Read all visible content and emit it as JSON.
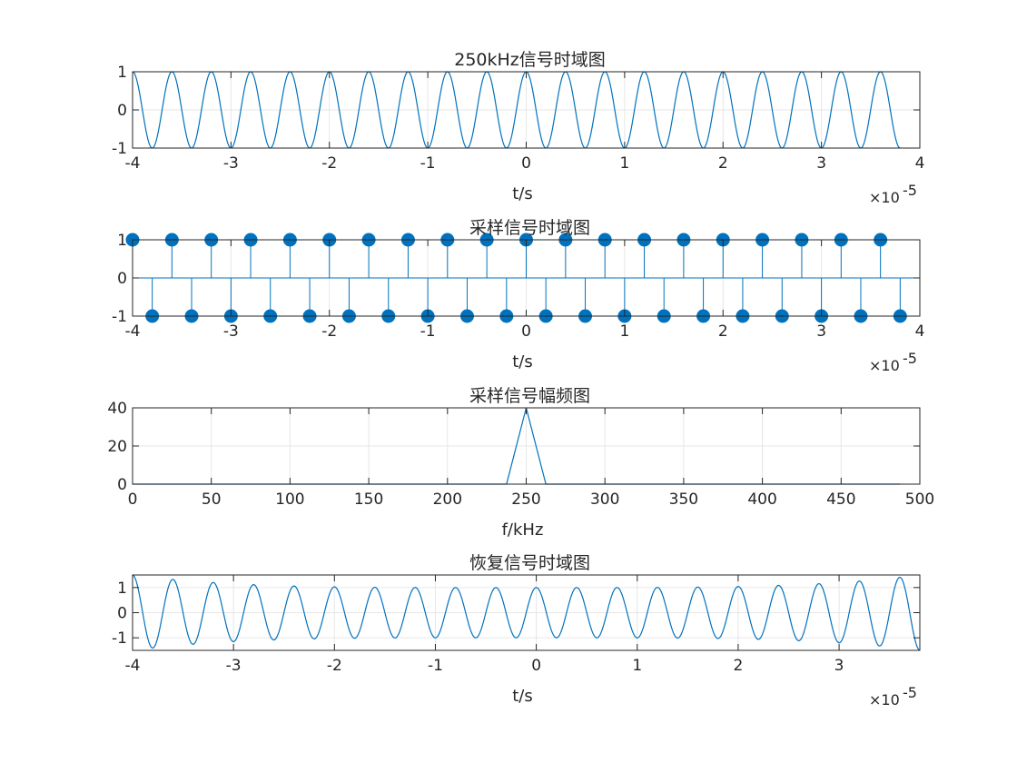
{
  "chart_data": [
    {
      "type": "line",
      "title": "250kHz信号时域图",
      "xlabel": "t/s",
      "ylabel": "",
      "x_exponent_label": "×10",
      "x_exponent": "-5",
      "xlim": [
        -4,
        4
      ],
      "ylim": [
        -1,
        1
      ],
      "xticks": [
        -4,
        -3,
        -2,
        -1,
        0,
        1,
        2,
        3,
        4
      ],
      "xtick_labels": [
        "-4",
        "-3",
        "-2",
        "-1",
        "0",
        "1",
        "2",
        "3",
        "4"
      ],
      "yticks": [
        -1,
        0,
        1
      ],
      "ytick_labels": [
        "-1",
        "0",
        "1"
      ],
      "grid": true,
      "series": [
        {
          "function": "cos",
          "frequency_hz": 250000,
          "amplitude": 1,
          "x_range": [
            -4,
            3.8
          ]
        }
      ]
    },
    {
      "type": "stem",
      "title": "采样信号时域图",
      "xlabel": "t/s",
      "ylabel": "",
      "x_exponent_label": "×10",
      "x_exponent": "-5",
      "xlim": [
        -4,
        4
      ],
      "ylim": [
        -1,
        1
      ],
      "xticks": [
        -4,
        -3,
        -2,
        -1,
        0,
        1,
        2,
        3,
        4
      ],
      "xtick_labels": [
        "-4",
        "-3",
        "-2",
        "-1",
        "0",
        "1",
        "2",
        "3",
        "4"
      ],
      "yticks": [
        -1,
        0,
        1
      ],
      "ytick_labels": [
        "-1",
        "0",
        "1"
      ],
      "grid": true,
      "series": [
        {
          "x": [
            -4.0,
            -3.8,
            -3.6,
            -3.4,
            -3.2,
            -3.0,
            -2.8,
            -2.6,
            -2.4,
            -2.2,
            -2.0,
            -1.8,
            -1.6,
            -1.4,
            -1.2,
            -1.0,
            -0.8,
            -0.6,
            -0.4,
            -0.2,
            0.0,
            0.2,
            0.4,
            0.6,
            0.8,
            1.0,
            1.2,
            1.4,
            1.6,
            1.8,
            2.0,
            2.2,
            2.4,
            2.6,
            2.8,
            3.0,
            3.2,
            3.4,
            3.6,
            3.8
          ],
          "values": [
            1,
            -1,
            1,
            -1,
            1,
            -1,
            1,
            -1,
            1,
            -1,
            1,
            -1,
            1,
            -1,
            1,
            -1,
            1,
            -1,
            1,
            -1,
            1,
            -1,
            1,
            -1,
            1,
            -1,
            1,
            -1,
            1,
            -1,
            1,
            -1,
            1,
            -1,
            1,
            -1,
            1,
            -1,
            1,
            -1
          ]
        }
      ]
    },
    {
      "type": "line",
      "title": "采样信号幅频图",
      "xlabel": "f/kHz",
      "ylabel": "",
      "xlim": [
        0,
        500
      ],
      "ylim": [
        0,
        40
      ],
      "xticks": [
        0,
        50,
        100,
        150,
        200,
        250,
        300,
        350,
        400,
        450,
        500
      ],
      "xtick_labels": [
        "0",
        "50",
        "100",
        "150",
        "200",
        "250",
        "300",
        "350",
        "400",
        "450",
        "500"
      ],
      "yticks": [
        0,
        20,
        40
      ],
      "ytick_labels": [
        "0",
        "20",
        "40"
      ],
      "grid": true,
      "series": [
        {
          "x": [
            0,
            237.5,
            250,
            262.5,
            487.5
          ],
          "values": [
            0,
            0,
            40,
            0,
            0
          ]
        }
      ]
    },
    {
      "type": "line",
      "title": "恢复信号时域图",
      "xlabel": "t/s",
      "ylabel": "",
      "x_exponent_label": "×10",
      "x_exponent": "-5",
      "xlim": [
        -4,
        3.8
      ],
      "ylim": [
        -1.5,
        1.5
      ],
      "xticks": [
        -4,
        -3,
        -2,
        -1,
        0,
        1,
        2,
        3
      ],
      "xtick_labels": [
        "-4",
        "-3",
        "-2",
        "-1",
        "0",
        "1",
        "2",
        "3"
      ],
      "yticks": [
        -1,
        0,
        1
      ],
      "ytick_labels": [
        "-1",
        "0",
        "1"
      ],
      "grid": true,
      "series": [
        {
          "function": "reconstructed-cos",
          "frequency_hz": 250000,
          "x_range": [
            -4,
            3.8
          ],
          "envelope": {
            "center": 1.0,
            "edge": 1.5
          }
        }
      ]
    }
  ],
  "colors": {
    "series": "#0072BD",
    "axes": "#262626",
    "grid": "#e6e6e6",
    "background": "#ffffff"
  }
}
